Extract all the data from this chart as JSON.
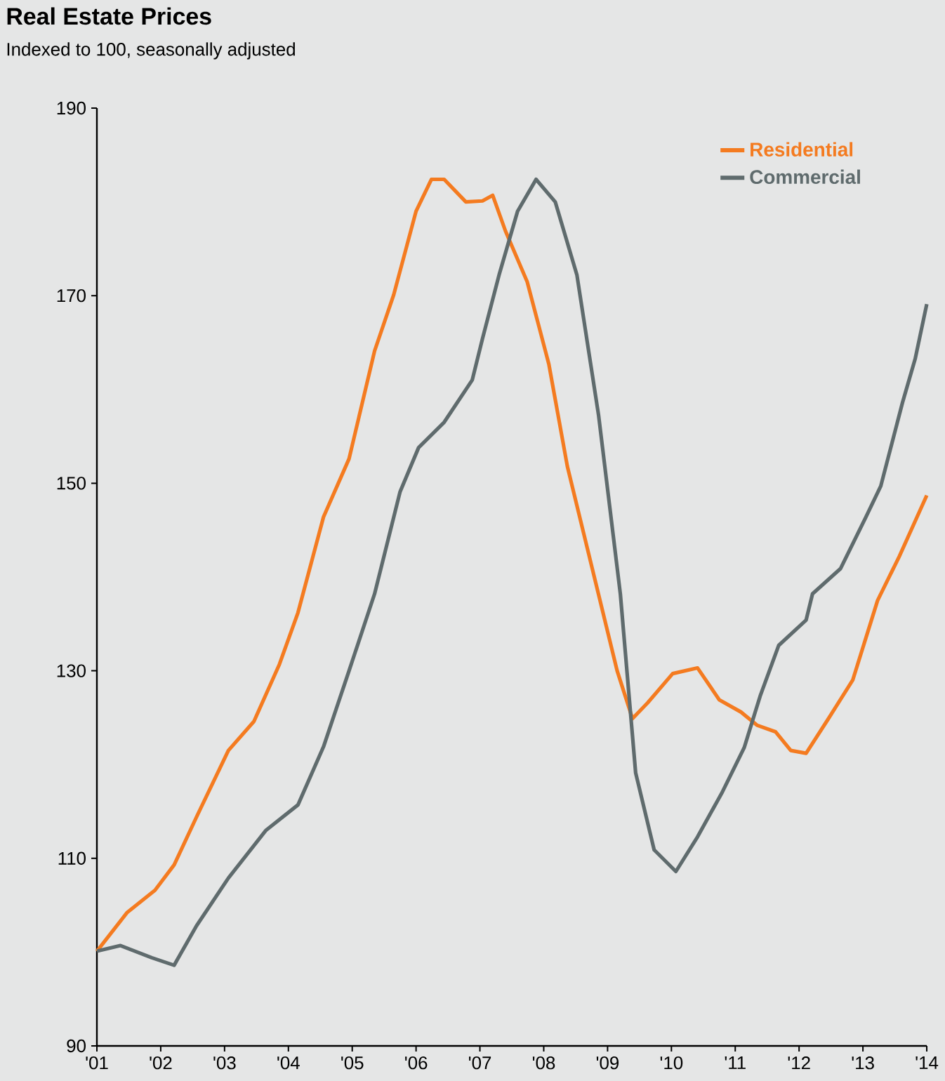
{
  "chart_data": {
    "type": "line",
    "title": "Real Estate Prices",
    "subtitle": "Indexed to 100, seasonally adjusted",
    "xlim": [
      2001,
      2014
    ],
    "ylim": [
      90,
      190
    ],
    "yticks": [
      90,
      110,
      130,
      150,
      170,
      190
    ],
    "xticks": [
      {
        "value": 2001,
        "label": "'01"
      },
      {
        "value": 2002,
        "label": "'02"
      },
      {
        "value": 2003,
        "label": "'03"
      },
      {
        "value": 2004,
        "label": "'04"
      },
      {
        "value": 2005,
        "label": "'05"
      },
      {
        "value": 2006,
        "label": "'06"
      },
      {
        "value": 2007,
        "label": "'07"
      },
      {
        "value": 2008,
        "label": "'08"
      },
      {
        "value": 2009,
        "label": "'09"
      },
      {
        "value": 2010,
        "label": "'10"
      },
      {
        "value": 2011,
        "label": "'11"
      },
      {
        "value": 2012,
        "label": "'12"
      },
      {
        "value": 2013,
        "label": "'13"
      },
      {
        "value": 2014,
        "label": "'14"
      }
    ],
    "legend": "top right",
    "marker": "none",
    "line_style": "solid",
    "series": [
      {
        "name": "Residential",
        "color": "#f47b20",
        "x": [
          2001.0,
          2001.47,
          2001.91,
          2002.21,
          2002.56,
          2003.06,
          2003.46,
          2003.86,
          2004.15,
          2004.55,
          2004.95,
          2005.35,
          2005.65,
          2006.0,
          2006.24,
          2006.44,
          2006.78,
          2007.04,
          2007.2,
          2007.4,
          2007.74,
          2008.08,
          2008.37,
          2008.76,
          2009.15,
          2009.39,
          2009.63,
          2010.02,
          2010.41,
          2010.75,
          2011.09,
          2011.34,
          2011.63,
          2011.87,
          2012.11,
          2012.46,
          2012.84,
          2013.23,
          2013.57,
          2014.0
        ],
        "values": [
          100.1,
          104.2,
          106.6,
          109.3,
          114.4,
          121.5,
          124.6,
          130.7,
          136.2,
          146.4,
          152.6,
          164.1,
          170.1,
          179.0,
          182.4,
          182.4,
          180.0,
          180.1,
          180.7,
          176.9,
          171.5,
          162.7,
          151.8,
          140.9,
          130.0,
          124.9,
          126.6,
          129.7,
          130.3,
          126.9,
          125.6,
          124.2,
          123.5,
          121.5,
          121.2,
          124.9,
          129.0,
          137.5,
          142.2,
          148.7
        ]
      },
      {
        "name": "Commercial",
        "color": "#5f6b6d",
        "x": [
          2001.0,
          2001.37,
          2001.86,
          2002.21,
          2002.56,
          2003.06,
          2003.65,
          2004.15,
          2004.55,
          2004.95,
          2005.35,
          2005.75,
          2006.04,
          2006.44,
          2006.88,
          2007.04,
          2007.3,
          2007.59,
          2007.88,
          2008.18,
          2008.52,
          2008.86,
          2009.2,
          2009.44,
          2009.73,
          2010.07,
          2010.41,
          2010.8,
          2011.14,
          2011.39,
          2011.68,
          2012.11,
          2012.21,
          2012.65,
          2013.04,
          2013.28,
          2013.62,
          2013.82,
          2014.0
        ],
        "values": [
          100.1,
          100.7,
          99.4,
          98.6,
          102.8,
          107.9,
          113.0,
          115.7,
          121.9,
          130.0,
          138.2,
          149.1,
          153.8,
          156.5,
          161.0,
          165.4,
          172.2,
          179.0,
          182.4,
          180.0,
          172.2,
          157.2,
          138.2,
          119.1,
          110.9,
          108.6,
          112.3,
          117.1,
          121.8,
          127.3,
          132.7,
          135.4,
          138.2,
          140.9,
          146.3,
          149.7,
          158.6,
          163.3,
          169.1
        ]
      }
    ]
  }
}
